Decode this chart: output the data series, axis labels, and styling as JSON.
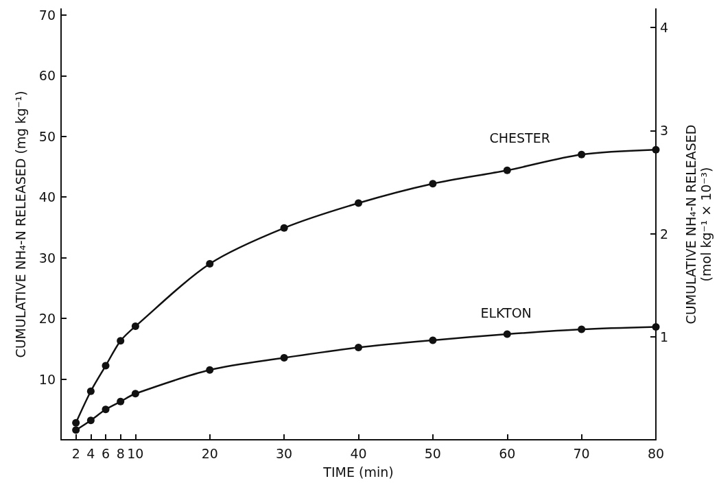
{
  "chart_data": {
    "type": "line",
    "xlabel": "TIME (min)",
    "ylabel": "CUMULATIVE NH₄-N RELEASED (mg kg⁻¹)",
    "y2label": "CUMULATIVE NH₄-N RELEASED\n(mol kg⁻¹ × 10⁻³)",
    "x": [
      2,
      4,
      6,
      8,
      10,
      20,
      30,
      40,
      50,
      60,
      70,
      80
    ],
    "series": [
      {
        "name": "CHESTER",
        "color": "#111111",
        "values": [
          2.8,
          8.0,
          12.2,
          16.3,
          18.7,
          29.0,
          34.9,
          39.0,
          42.2,
          44.4,
          47.0,
          47.8
        ]
      },
      {
        "name": "ELKTON",
        "color": "#111111",
        "values": [
          1.6,
          3.2,
          5.0,
          6.3,
          7.6,
          11.5,
          13.5,
          15.2,
          16.4,
          17.4,
          18.2,
          18.6
        ]
      }
    ],
    "xlim": [
      0,
      80
    ],
    "xticks": [
      2,
      4,
      6,
      8,
      10,
      20,
      30,
      40,
      50,
      60,
      70,
      80
    ],
    "ylim": [
      0,
      71
    ],
    "yticks": [
      10,
      20,
      30,
      40,
      50,
      60,
      70
    ],
    "y2lim": [
      0,
      4.18
    ],
    "y2ticks": [
      1,
      2,
      3,
      4
    ],
    "marker": "circle",
    "line_style": "solid",
    "grid": false,
    "legend": false
  }
}
